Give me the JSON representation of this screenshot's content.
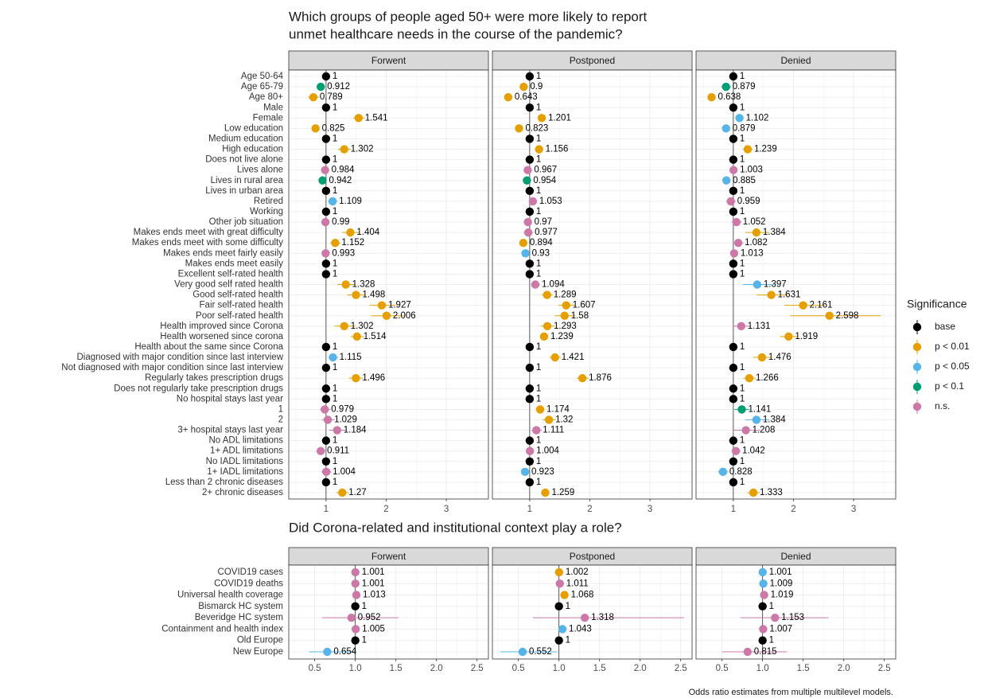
{
  "chart_data": [
    {
      "type": "forest",
      "title": [
        "Which groups of people aged 50+ were more likely to report",
        "unmet healthcare needs in the course of the pandemic?"
      ],
      "legend": {
        "title": "Significance",
        "items": [
          {
            "name": "base",
            "color": "#000000"
          },
          {
            "name": "p < 0.01",
            "color": "#E69F00"
          },
          {
            "name": "p < 0.05",
            "color": "#56B4E9"
          },
          {
            "name": "p < 0.1",
            "color": "#009E73"
          },
          {
            "name": "n.s.",
            "color": "#CC79A7"
          }
        ]
      },
      "categories": [
        "Age 50-64",
        "Age 65-79",
        "Age 80+",
        "Male",
        "Female",
        "Low education",
        "Medium education",
        "High education",
        "Does not live alone",
        "Lives alone",
        "Lives in rural area",
        "Lives in urban area",
        "Retired",
        "Working",
        "Other job situation",
        "Makes ends meet with great difficulty",
        "Makes ends meet with some difficulty",
        "Makes ends meet fairly easily",
        "Makes ends meet easily",
        "Excellent self-rated health",
        "Very good self rated health",
        "Good self-rated health",
        "Fair self-rated health",
        "Poor self-rated health",
        "Health improved since Corona",
        "Health worsened since corona",
        "Health about the same since Corona",
        "Diagnosed with major condition since last interview",
        "Not diagnosed with major condition since last interview",
        "Regularly takes prescription drugs",
        "Does not regularly take prescription drugs",
        "No hospital stays last year",
        "1",
        "2",
        "3+ hospital stays last year",
        "No ADL limitations",
        "1+ ADL limitations",
        "No IADL limitations",
        "1+ IADL limitations",
        "Less than 2 chronic diseases",
        "2+ chronic diseases"
      ],
      "xlim": [
        0.38,
        3.7
      ],
      "xticks": [
        1,
        2,
        3
      ],
      "xminor": [
        0.5,
        1.5,
        2.5,
        3.5
      ],
      "refline": 1,
      "grid": true,
      "facets": [
        {
          "name": "Forwent",
          "values": [
            1,
            0.912,
            0.789,
            1,
            1.541,
            0.825,
            1,
            1.302,
            1,
            0.984,
            0.942,
            1,
            1.109,
            1,
            0.99,
            1.404,
            1.152,
            0.993,
            1,
            1,
            1.328,
            1.498,
            1.927,
            2.006,
            1.302,
            1.514,
            1,
            1.115,
            1,
            1.496,
            1,
            1,
            0.979,
            1.029,
            1.184,
            1,
            0.911,
            1,
            1.004,
            1,
            1.27
          ],
          "lower": [
            null,
            0.85,
            0.7,
            null,
            1.45,
            0.77,
            null,
            1.2,
            null,
            0.93,
            0.88,
            null,
            1.03,
            null,
            0.92,
            1.27,
            1.07,
            0.93,
            null,
            null,
            1.19,
            1.35,
            1.72,
            1.75,
            1.14,
            1.41,
            null,
            1.04,
            null,
            1.38,
            null,
            null,
            0.9,
            0.93,
            1.05,
            null,
            0.84,
            null,
            0.92,
            null,
            1.17
          ],
          "upper": [
            null,
            0.98,
            0.88,
            null,
            1.64,
            0.89,
            null,
            1.41,
            null,
            1.04,
            1.0,
            null,
            1.19,
            null,
            1.06,
            1.55,
            1.24,
            1.06,
            null,
            null,
            1.48,
            1.66,
            2.16,
            2.3,
            1.48,
            1.63,
            null,
            1.2,
            null,
            1.62,
            null,
            null,
            1.07,
            1.14,
            1.34,
            null,
            0.99,
            null,
            1.09,
            null,
            1.38
          ],
          "significance": [
            "base",
            "p < 0.1",
            "p < 0.01",
            "base",
            "p < 0.01",
            "p < 0.01",
            "base",
            "p < 0.01",
            "base",
            "n.s.",
            "p < 0.1",
            "base",
            "p < 0.05",
            "base",
            "n.s.",
            "p < 0.01",
            "p < 0.01",
            "n.s.",
            "base",
            "base",
            "p < 0.01",
            "p < 0.01",
            "p < 0.01",
            "p < 0.01",
            "p < 0.01",
            "p < 0.01",
            "base",
            "p < 0.05",
            "base",
            "p < 0.01",
            "base",
            "base",
            "n.s.",
            "n.s.",
            "n.s.",
            "base",
            "n.s.",
            "base",
            "n.s.",
            "base",
            "p < 0.01"
          ]
        },
        {
          "name": "Postponed",
          "values": [
            1,
            0.9,
            0.643,
            1,
            1.201,
            0.823,
            1,
            1.156,
            1,
            0.967,
            0.954,
            1,
            1.053,
            1,
            0.97,
            0.977,
            0.894,
            0.93,
            1,
            1,
            1.094,
            1.289,
            1.607,
            1.58,
            1.293,
            1.239,
            1,
            1.421,
            1,
            1.876,
            1,
            1,
            1.174,
            1.32,
            1.111,
            1,
            1.004,
            1,
            0.923,
            1,
            1.259
          ],
          "lower": [
            null,
            0.85,
            0.59,
            null,
            1.15,
            0.77,
            null,
            1.1,
            null,
            0.93,
            0.91,
            null,
            1.0,
            null,
            0.92,
            0.9,
            0.85,
            0.89,
            null,
            null,
            1.02,
            1.2,
            1.48,
            1.42,
            1.18,
            1.18,
            null,
            1.33,
            null,
            1.78,
            null,
            null,
            1.1,
            1.22,
            1.03,
            null,
            0.95,
            null,
            0.87,
            null,
            1.19
          ],
          "upper": [
            null,
            0.95,
            0.7,
            null,
            1.26,
            0.88,
            null,
            1.22,
            null,
            1.01,
            1.0,
            null,
            1.11,
            null,
            1.02,
            1.06,
            0.94,
            0.97,
            null,
            null,
            1.17,
            1.38,
            1.75,
            1.76,
            1.42,
            1.3,
            null,
            1.52,
            null,
            1.98,
            null,
            null,
            1.25,
            1.43,
            1.2,
            null,
            1.06,
            null,
            0.98,
            null,
            1.33
          ],
          "significance": [
            "base",
            "p < 0.01",
            "p < 0.01",
            "base",
            "p < 0.01",
            "p < 0.01",
            "base",
            "p < 0.01",
            "base",
            "n.s.",
            "p < 0.1",
            "base",
            "n.s.",
            "base",
            "n.s.",
            "n.s.",
            "p < 0.01",
            "p < 0.05",
            "base",
            "base",
            "n.s.",
            "p < 0.01",
            "p < 0.01",
            "p < 0.01",
            "p < 0.01",
            "p < 0.01",
            "base",
            "p < 0.01",
            "base",
            "p < 0.01",
            "base",
            "base",
            "p < 0.01",
            "p < 0.01",
            "n.s.",
            "base",
            "n.s.",
            "base",
            "p < 0.05",
            "base",
            "p < 0.01"
          ]
        },
        {
          "name": "Denied",
          "values": [
            1,
            0.879,
            0.638,
            1,
            1.102,
            0.879,
            1,
            1.239,
            1,
            1.003,
            0.885,
            1,
            0.959,
            1,
            1.052,
            1.384,
            1.082,
            1.013,
            1,
            1,
            1.397,
            1.631,
            2.161,
            2.598,
            1.131,
            1.919,
            1,
            1.476,
            1,
            1.266,
            1,
            1,
            1.141,
            1.384,
            1.208,
            1,
            1.042,
            1,
            0.828,
            1,
            1.333
          ],
          "lower": [
            null,
            0.8,
            0.58,
            null,
            1.04,
            0.83,
            null,
            1.16,
            null,
            0.95,
            0.83,
            null,
            0.88,
            null,
            0.97,
            1.2,
            1.0,
            0.96,
            null,
            null,
            1.16,
            1.39,
            1.85,
            1.95,
            0.99,
            1.78,
            null,
            1.33,
            null,
            1.17,
            null,
            null,
            1.02,
            1.2,
            1.0,
            null,
            0.97,
            null,
            0.74,
            null,
            1.23
          ],
          "upper": [
            null,
            0.96,
            0.7,
            null,
            1.17,
            0.93,
            null,
            1.32,
            null,
            1.06,
            0.94,
            null,
            1.04,
            null,
            1.14,
            1.6,
            1.17,
            1.07,
            null,
            null,
            1.68,
            1.91,
            2.52,
            3.45,
            1.29,
            2.07,
            null,
            1.63,
            null,
            1.37,
            null,
            null,
            1.27,
            1.6,
            1.45,
            null,
            1.12,
            null,
            0.92,
            null,
            1.44
          ],
          "significance": [
            "base",
            "p < 0.1",
            "p < 0.01",
            "base",
            "p < 0.05",
            "p < 0.05",
            "base",
            "p < 0.01",
            "base",
            "n.s.",
            "p < 0.05",
            "base",
            "n.s.",
            "base",
            "n.s.",
            "p < 0.01",
            "n.s.",
            "n.s.",
            "base",
            "base",
            "p < 0.05",
            "p < 0.01",
            "p < 0.01",
            "p < 0.01",
            "n.s.",
            "p < 0.01",
            "base",
            "p < 0.01",
            "base",
            "p < 0.01",
            "base",
            "base",
            "p < 0.1",
            "p < 0.05",
            "n.s.",
            "base",
            "n.s.",
            "base",
            "p < 0.05",
            "base",
            "p < 0.01"
          ]
        }
      ]
    },
    {
      "type": "forest",
      "title": [
        "Did Corona-related and institutional context play a role?"
      ],
      "caption": "Odds ratio estimates from multiple multilevel models.",
      "categories": [
        "COVID19 cases",
        "COVID19 deaths",
        "Universal health coverage",
        "Bismarck HC system",
        "Beveridge HC system",
        "Containment and health index",
        "Old Europe",
        "New Europe"
      ],
      "xlim": [
        0.18,
        2.64
      ],
      "xticks": [
        0.5,
        {
          "value": 1,
          "label": "1.0"
        },
        1.5,
        {
          "value": 2,
          "label": "2.0"
        },
        2.5
      ],
      "xminor": [
        0.25,
        0.75,
        1.25,
        1.75,
        2.25
      ],
      "refline": 1,
      "grid": true,
      "facets": [
        {
          "name": "Forwent",
          "values": [
            1.001,
            1.001,
            1.013,
            1,
            0.952,
            1.005,
            1,
            0.654
          ],
          "lower": [
            0.98,
            0.97,
            0.98,
            null,
            0.59,
            0.97,
            null,
            0.43
          ],
          "upper": [
            1.02,
            1.03,
            1.05,
            null,
            1.53,
            1.04,
            null,
            0.99
          ],
          "significance": [
            "n.s.",
            "n.s.",
            "n.s.",
            "base",
            "n.s.",
            "n.s.",
            "base",
            "p < 0.05"
          ]
        },
        {
          "name": "Postponed",
          "values": [
            1.002,
            1.011,
            1.068,
            1,
            1.318,
            1.043,
            1,
            0.552
          ],
          "lower": [
            0.99,
            0.99,
            1.03,
            null,
            0.68,
            1.01,
            null,
            0.28
          ],
          "upper": [
            1.01,
            1.03,
            1.1,
            null,
            2.54,
            1.08,
            null,
            0.98
          ],
          "significance": [
            "p < 0.01",
            "n.s.",
            "p < 0.01",
            "base",
            "n.s.",
            "p < 0.05",
            "base",
            "p < 0.05"
          ]
        },
        {
          "name": "Denied",
          "values": [
            1.001,
            1.009,
            1.019,
            1,
            1.153,
            1.007,
            1,
            0.815
          ],
          "lower": [
            0.99,
            0.99,
            0.99,
            null,
            0.73,
            0.98,
            null,
            0.5
          ],
          "upper": [
            1.01,
            1.03,
            1.05,
            null,
            1.81,
            1.03,
            null,
            1.3
          ],
          "significance": [
            "p < 0.05",
            "p < 0.05",
            "n.s.",
            "base",
            "n.s.",
            "n.s.",
            "base",
            "n.s."
          ]
        }
      ]
    }
  ]
}
